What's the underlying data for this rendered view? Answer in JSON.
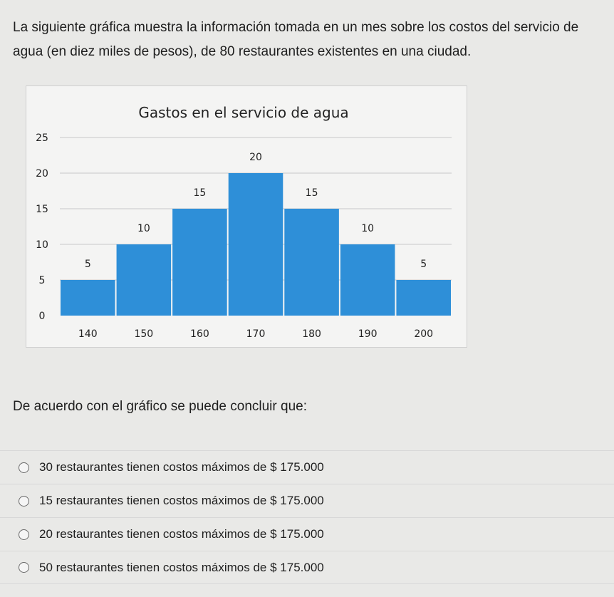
{
  "intro_text": "La siguiente gráfica muestra la información tomada en un mes sobre los costos del servicio de agua (en diez miles de pesos), de 80 restaurantes existentes en una ciudad.",
  "question": "De acuerdo con el gráfico se puede concluir que:",
  "options": [
    {
      "label": "30 restaurantes tienen costos máximos de $ 175.000"
    },
    {
      "label": "15 restaurantes tienen costos máximos de $ 175.000"
    },
    {
      "label": "20 restaurantes tienen costos máximos de $ 175.000"
    },
    {
      "label": "50 restaurantes tienen costos máximos de $ 175.000"
    }
  ],
  "chart_data": {
    "type": "bar",
    "title": "Gastos en el servicio de agua",
    "xlabel": "",
    "ylabel": "",
    "categories": [
      "140",
      "150",
      "160",
      "170",
      "180",
      "190",
      "200"
    ],
    "values": [
      5,
      10,
      15,
      20,
      15,
      10,
      5
    ],
    "data_labels": [
      "5",
      "10",
      "15",
      "20",
      "15",
      "10",
      "5"
    ],
    "yticks": [
      "0",
      "5",
      "10",
      "15",
      "20",
      "25"
    ],
    "ylim": [
      0,
      25
    ],
    "grid": true,
    "legend": "none",
    "bar_color": "#2e8fd8"
  }
}
